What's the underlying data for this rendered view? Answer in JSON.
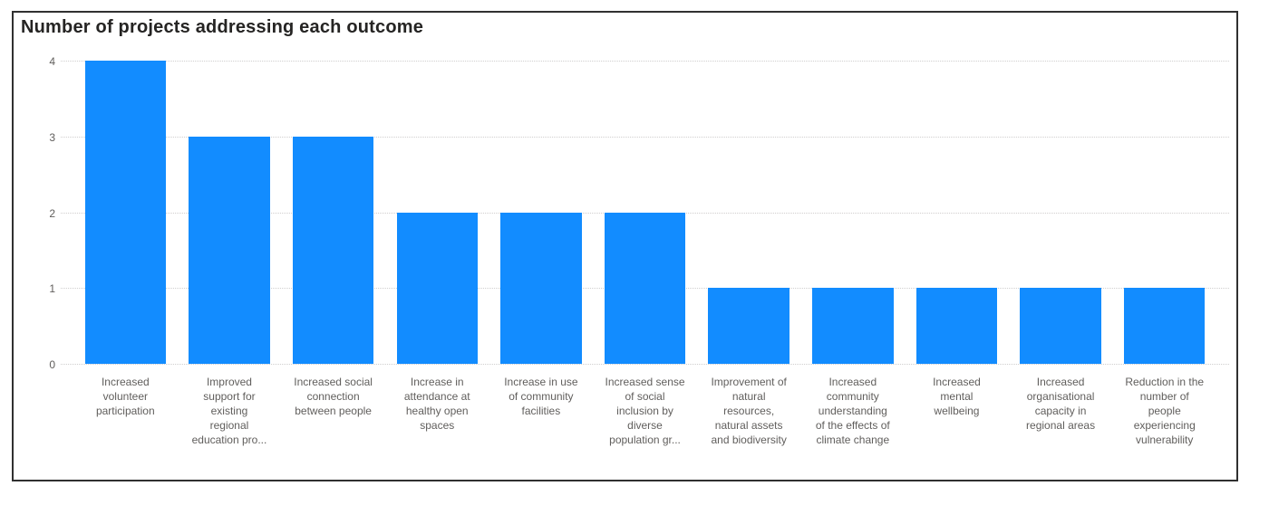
{
  "chart_data": {
    "type": "bar",
    "title": "Number of projects addressing each outcome",
    "categories": [
      "Increased volunteer participation",
      "Improved support for existing regional education pro...",
      "Increased social connection between people",
      "Increase in attendance at healthy open spaces",
      "Increase in use of community facilities",
      "Increased sense of social inclusion by diverse population gr...",
      "Improvement of natural resources, natural assets and biodiversity",
      "Increased community understanding of the effects of climate change",
      "Increased mental wellbeing",
      "Increased organisational capacity in regional areas",
      "Reduction in the number of people experiencing vulnerability"
    ],
    "categories_display": [
      "Increased\nvolunteer\nparticipation",
      "Improved\nsupport for\nexisting\nregional\neducation pro...",
      "Increased social\nconnection\nbetween people",
      "Increase in\nattendance at\nhealthy open\nspaces",
      "Increase in use\nof community\nfacilities",
      "Increased sense\nof social\ninclusion by\ndiverse\npopulation gr...",
      "Improvement of\nnatural\nresources,\nnatural assets\nand biodiversity",
      "Increased\ncommunity\nunderstanding\nof the effects of\nclimate change",
      "Increased\nmental\nwellbeing",
      "Increased\norganisational\ncapacity in\nregional areas",
      "Reduction in the\nnumber of\npeople\nexperiencing\nvulnerability"
    ],
    "values": [
      4,
      3,
      3,
      2,
      2,
      2,
      1,
      1,
      1,
      1,
      1
    ],
    "xlabel": "",
    "ylabel": "",
    "ylim": [
      0,
      4
    ],
    "yticks": [
      4,
      3,
      2,
      1,
      0
    ],
    "grid": "dotted-horizontal",
    "legend": "none"
  },
  "colors": {
    "bar": "#128CFF",
    "title_text": "#252423",
    "axis_text": "#605E5C",
    "gridline": "#D0CECE",
    "frame_border": "#303030"
  }
}
